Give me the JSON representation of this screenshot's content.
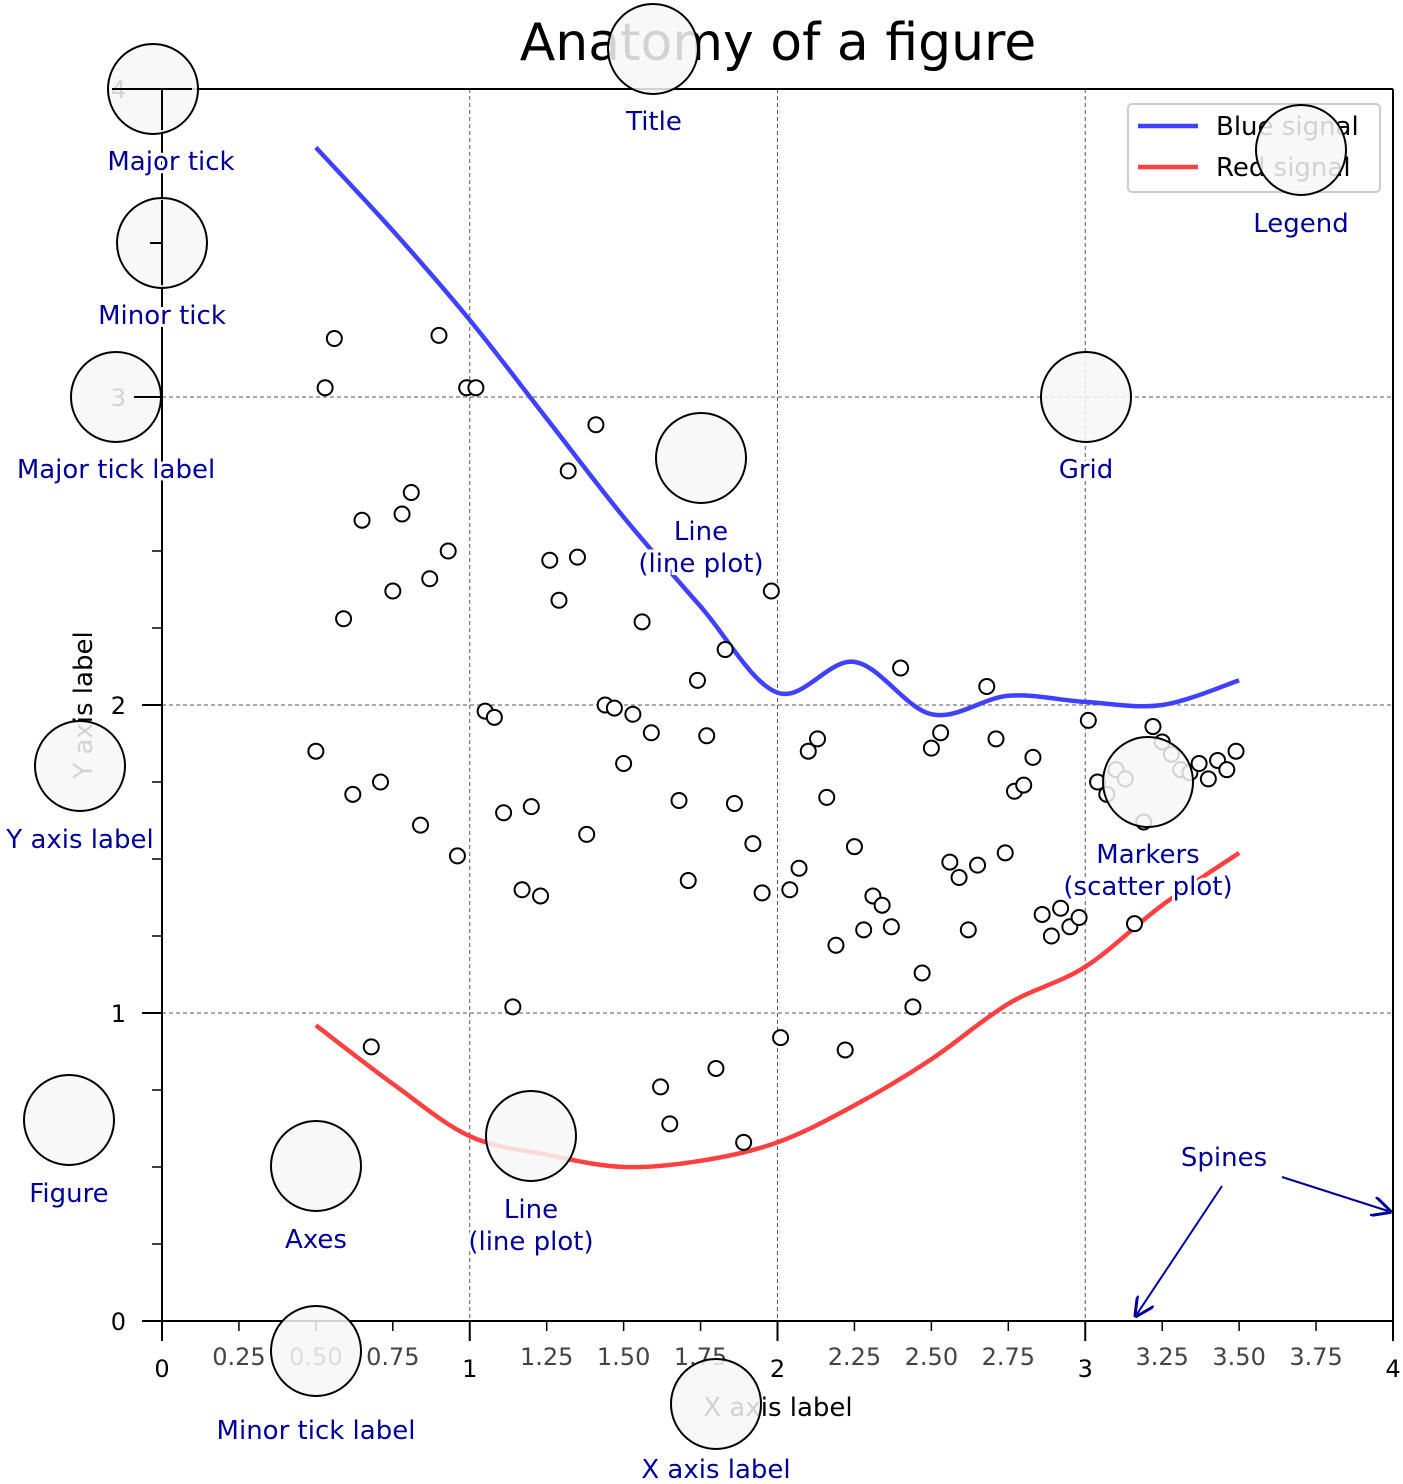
{
  "chart_data": {
    "type": "line",
    "title": "Anatomy of a figure",
    "xlabel": "X axis label",
    "ylabel": "Y axis label",
    "xlim": [
      0,
      4
    ],
    "ylim": [
      0,
      4
    ],
    "grid": true,
    "legend_position": "top-right",
    "x_major_ticks": [
      0,
      1,
      2,
      3,
      4
    ],
    "x_major_tick_labels": [
      "0",
      "1",
      "2",
      "3",
      "4"
    ],
    "x_minor_ticks": [
      0.25,
      0.5,
      0.75,
      1.25,
      1.5,
      1.75,
      2.25,
      2.5,
      2.75,
      3.25,
      3.5,
      3.75
    ],
    "x_minor_tick_labels": [
      "0.25",
      "0.50",
      "0.75",
      "1.25",
      "1.50",
      "1.75",
      "2.25",
      "2.50",
      "2.75",
      "3.25",
      "3.50",
      "3.75"
    ],
    "y_major_ticks": [
      0,
      1,
      2,
      3,
      4
    ],
    "y_major_tick_labels": [
      "0",
      "1",
      "2",
      "3",
      "4"
    ],
    "y_minor_ticks": [
      0.25,
      0.5,
      0.75,
      1.25,
      1.5,
      1.75,
      2.25,
      2.5,
      2.75,
      3.25,
      3.5,
      3.75
    ],
    "series": [
      {
        "name": "Blue signal",
        "color": "#4040ff",
        "x": [
          0.5,
          0.75,
          1.0,
          1.25,
          1.5,
          1.75,
          2.0,
          2.25,
          2.5,
          2.75,
          3.0,
          3.25,
          3.5
        ],
        "y": [
          3.81,
          3.54,
          3.25,
          2.93,
          2.61,
          2.32,
          2.04,
          2.14,
          1.97,
          2.03,
          2.01,
          2.0,
          2.08
        ]
      },
      {
        "name": "Red signal",
        "color": "#ff4040",
        "x": [
          0.5,
          0.75,
          1.0,
          1.25,
          1.5,
          1.75,
          2.0,
          2.25,
          2.5,
          2.75,
          3.0,
          3.25,
          3.5
        ],
        "y": [
          0.96,
          0.77,
          0.6,
          0.54,
          0.5,
          0.52,
          0.58,
          0.7,
          0.85,
          1.03,
          1.15,
          1.35,
          1.52
        ]
      }
    ],
    "markers": {
      "x": [
        0.5,
        0.53,
        0.56,
        0.59,
        0.62,
        0.65,
        0.68,
        0.71,
        0.75,
        0.78,
        0.81,
        0.84,
        0.87,
        0.9,
        0.93,
        0.96,
        0.99,
        1.02,
        1.05,
        1.08,
        1.11,
        1.14,
        1.17,
        1.2,
        1.23,
        1.26,
        1.29,
        1.32,
        1.35,
        1.38,
        1.41,
        1.44,
        1.47,
        1.5,
        1.53,
        1.56,
        1.59,
        1.62,
        1.65,
        1.68,
        1.71,
        1.74,
        1.77,
        1.8,
        1.83,
        1.86,
        1.89,
        1.92,
        1.95,
        1.98,
        2.01,
        2.04,
        2.07,
        2.1,
        2.13,
        2.16,
        2.19,
        2.22,
        2.25,
        2.28,
        2.31,
        2.34,
        2.37,
        2.4,
        2.44,
        2.47,
        2.5,
        2.53,
        2.56,
        2.59,
        2.62,
        2.65,
        2.68,
        2.71,
        2.74,
        2.77,
        2.8,
        2.83,
        2.86,
        2.89,
        2.92,
        2.95,
        2.98,
        3.01,
        3.04,
        3.07,
        3.1,
        3.13,
        3.16,
        3.19,
        3.22,
        3.25,
        3.28,
        3.31,
        3.34,
        3.37,
        3.4,
        3.43,
        3.46,
        3.49
      ],
      "y": [
        1.85,
        3.03,
        3.19,
        2.28,
        1.71,
        2.6,
        0.89,
        1.75,
        2.37,
        2.62,
        2.69,
        1.61,
        2.41,
        3.2,
        2.5,
        1.51,
        3.03,
        3.03,
        1.98,
        1.96,
        1.65,
        1.02,
        1.4,
        1.67,
        1.38,
        2.47,
        2.34,
        2.76,
        2.48,
        1.58,
        2.91,
        2.0,
        1.99,
        1.81,
        1.97,
        2.27,
        1.91,
        0.76,
        0.64,
        1.69,
        1.43,
        2.08,
        1.9,
        0.82,
        2.18,
        1.68,
        0.58,
        1.55,
        1.39,
        2.37,
        0.92,
        1.4,
        1.47,
        1.85,
        1.89,
        1.7,
        1.22,
        0.88,
        1.54,
        1.27,
        1.38,
        1.35,
        1.28,
        2.12,
        1.02,
        1.13,
        1.86,
        1.91,
        1.49,
        1.44,
        1.27,
        1.48,
        2.06,
        1.89,
        1.52,
        1.72,
        1.74,
        1.83,
        1.32,
        1.25,
        1.34,
        1.28,
        1.31,
        1.95,
        1.75,
        1.71,
        1.79,
        1.76,
        1.29,
        1.62,
        1.93,
        1.88,
        1.84,
        1.79,
        1.78,
        1.81,
        1.76,
        1.82,
        1.79,
        1.85
      ]
    }
  },
  "annotations": [
    {
      "key": "title",
      "label": "Title"
    },
    {
      "key": "major_tick",
      "label": "Major tick"
    },
    {
      "key": "minor_tick",
      "label": "Minor tick"
    },
    {
      "key": "major_tick_label",
      "label": "Major tick label"
    },
    {
      "key": "y_axis_label",
      "label": "Y axis label"
    },
    {
      "key": "figure",
      "label": "Figure"
    },
    {
      "key": "axes",
      "label": "Axes"
    },
    {
      "key": "minor_tick_label",
      "label": "Minor tick label"
    },
    {
      "key": "x_axis_label",
      "label": "X axis label"
    },
    {
      "key": "line_blue",
      "label": "Line\n(line plot)"
    },
    {
      "key": "line_red",
      "label": "Line\n(line plot)"
    },
    {
      "key": "grid",
      "label": "Grid"
    },
    {
      "key": "legend",
      "label": "Legend"
    },
    {
      "key": "markers",
      "label": "Markers\n(scatter plot)"
    },
    {
      "key": "spines",
      "label": "Spines"
    }
  ],
  "colors": {
    "annotation_text": "#000099",
    "annotation_circle_fill": "#f7f7f7",
    "marker_edge": "#000000",
    "grid": "#555555"
  }
}
